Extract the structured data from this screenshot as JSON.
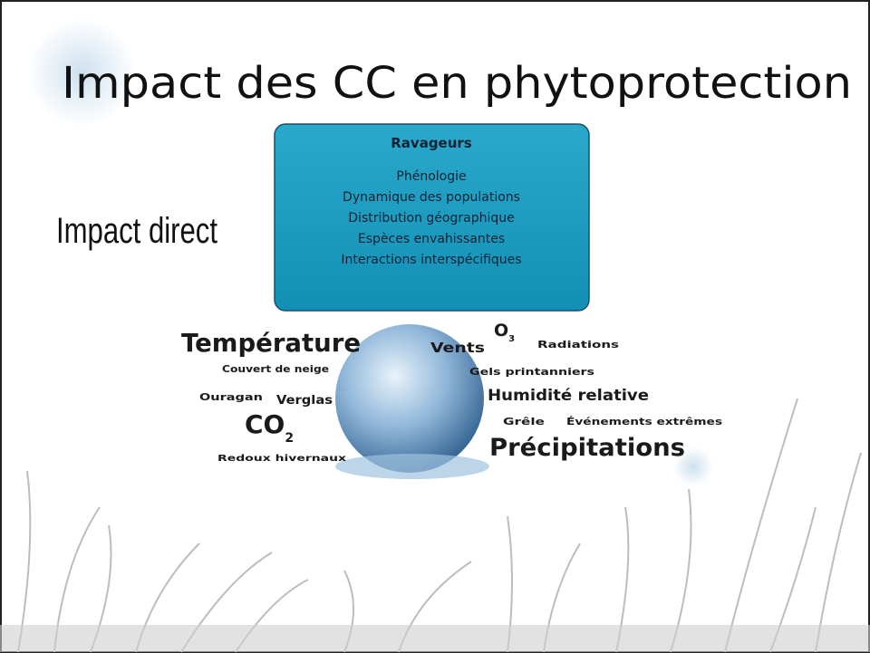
{
  "slide": {
    "title": "Impact des CC en phytoprotection",
    "label": "Impact direct",
    "box": {
      "heading": "Ravageurs",
      "items": [
        "Phénologie",
        "Dynamique des populations",
        "Distribution géographique",
        "Espèces envahissantes",
        "Interactions interspécifiques"
      ]
    },
    "factors": {
      "temperature": "Température",
      "snow": "Couvert de neige",
      "hurricane": "Ouragan",
      "ice": "Verglas",
      "co2": {
        "base": "CO",
        "sub": "2"
      },
      "thaw": "Redoux hivernaux",
      "wind": "Vents",
      "ozone": {
        "base": "O",
        "sub": "3"
      },
      "radiation": "Radiations",
      "frost": "Gels printanniers",
      "humidity": "Humidité relative",
      "hail": "Grêle",
      "extremes": "Événements extrêmes",
      "precipitation": "Précipitations"
    }
  }
}
